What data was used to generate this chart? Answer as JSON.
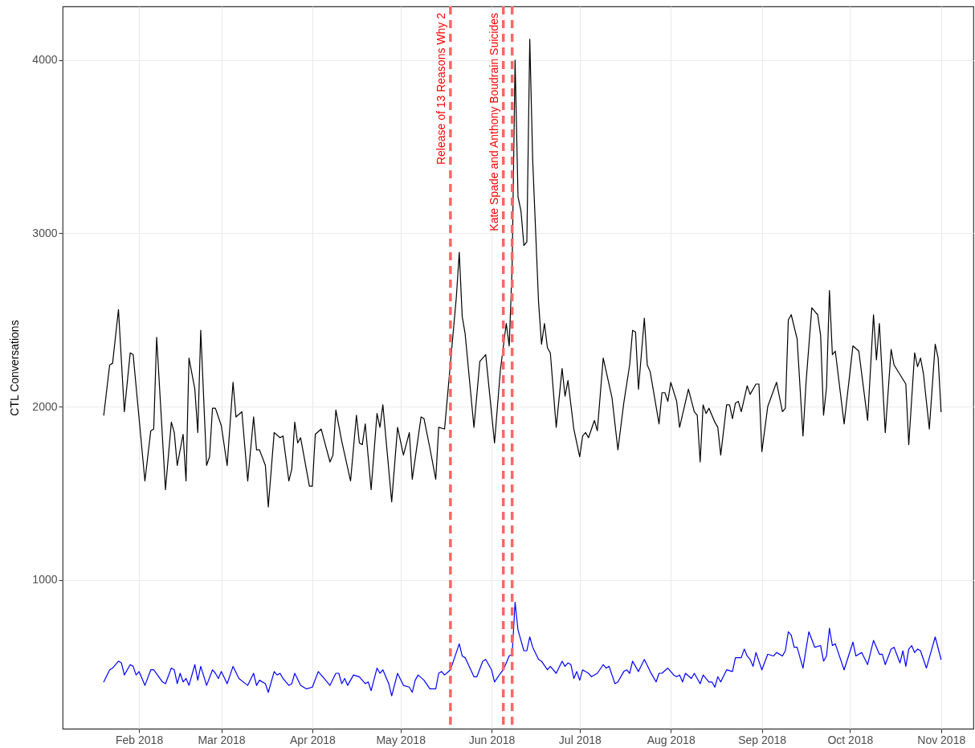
{
  "chart_data": {
    "type": "line",
    "ylabel": "CTL Conversations",
    "grid": true,
    "line_style": "solid",
    "xlim": [
      "2018-01-06",
      "2018-11-12"
    ],
    "ylim": [
      140,
      4310
    ],
    "xticks": [
      {
        "value": "2018-02-01",
        "label": "Feb 2018"
      },
      {
        "value": "2018-03-01",
        "label": "Mar 2018"
      },
      {
        "value": "2018-04-01",
        "label": "Apr 2018"
      },
      {
        "value": "2018-05-01",
        "label": "May 2018"
      },
      {
        "value": "2018-06-01",
        "label": "Jun 2018"
      },
      {
        "value": "2018-07-01",
        "label": "Jul 2018"
      },
      {
        "value": "2018-08-01",
        "label": "Aug 2018"
      },
      {
        "value": "2018-09-01",
        "label": "Sep 2018"
      },
      {
        "value": "2018-10-01",
        "label": "Oct 2018"
      },
      {
        "value": "2018-11-01",
        "label": "Nov 2018"
      }
    ],
    "yticks": [
      1000,
      2000,
      3000,
      4000
    ],
    "ref_lines": [
      {
        "axis": "x",
        "value": "2018-05-18",
        "label": "Release of 13 Reasons Why 2",
        "color": "#ff6666",
        "line_style": "dashed"
      },
      {
        "axis": "x",
        "value": "2018-06-05",
        "label": "Kate Spade and Anthony Boudrain Suicides",
        "color": "#ff6666",
        "line_style": "dashed"
      },
      {
        "axis": "x",
        "value": "2018-06-08",
        "color": "#ff6666",
        "line_style": "dashed"
      }
    ],
    "series": [
      {
        "color": "#000000",
        "x": [
          "2018-01-20",
          "2018-01-22",
          "2018-01-23",
          "2018-01-25",
          "2018-01-27",
          "2018-01-29",
          "2018-01-30",
          "2018-02-03",
          "2018-02-05",
          "2018-02-06",
          "2018-02-07",
          "2018-02-10",
          "2018-02-12",
          "2018-02-13",
          "2018-02-14",
          "2018-02-16",
          "2018-02-17",
          "2018-02-18",
          "2018-02-20",
          "2018-02-21",
          "2018-02-22",
          "2018-02-24",
          "2018-02-25",
          "2018-02-26",
          "2018-02-27",
          "2018-03-01",
          "2018-03-03",
          "2018-03-05",
          "2018-03-06",
          "2018-03-08",
          "2018-03-10",
          "2018-03-12",
          "2018-03-13",
          "2018-03-14",
          "2018-03-16",
          "2018-03-17",
          "2018-03-19",
          "2018-03-21",
          "2018-03-22",
          "2018-03-24",
          "2018-03-25",
          "2018-03-26",
          "2018-03-27",
          "2018-03-28",
          "2018-03-31",
          "2018-04-01",
          "2018-04-02",
          "2018-04-04",
          "2018-04-07",
          "2018-04-08",
          "2018-04-09",
          "2018-04-11",
          "2018-04-14",
          "2018-04-16",
          "2018-04-17",
          "2018-04-18",
          "2018-04-19",
          "2018-04-21",
          "2018-04-23",
          "2018-04-24",
          "2018-04-25",
          "2018-04-28",
          "2018-04-30",
          "2018-05-02",
          "2018-05-04",
          "2018-05-05",
          "2018-05-08",
          "2018-05-09",
          "2018-05-11",
          "2018-05-13",
          "2018-05-14",
          "2018-05-16",
          "2018-05-18",
          "2018-05-20",
          "2018-05-21",
          "2018-05-22",
          "2018-05-23",
          "2018-05-26",
          "2018-05-28",
          "2018-05-30",
          "2018-06-02",
          "2018-06-04",
          "2018-06-06",
          "2018-06-07",
          "2018-06-08",
          "2018-06-09",
          "2018-06-10",
          "2018-06-11",
          "2018-06-12",
          "2018-06-13",
          "2018-06-14",
          "2018-06-15",
          "2018-06-17",
          "2018-06-18",
          "2018-06-19",
          "2018-06-20",
          "2018-06-21",
          "2018-06-23",
          "2018-06-25",
          "2018-06-26",
          "2018-06-27",
          "2018-06-29",
          "2018-07-01",
          "2018-07-02",
          "2018-07-03",
          "2018-07-04",
          "2018-07-06",
          "2018-07-07",
          "2018-07-09",
          "2018-07-12",
          "2018-07-14",
          "2018-07-16",
          "2018-07-18",
          "2018-07-19",
          "2018-07-20",
          "2018-07-21",
          "2018-07-23",
          "2018-07-24",
          "2018-07-25",
          "2018-07-28",
          "2018-07-29",
          "2018-07-30",
          "2018-07-31",
          "2018-08-01",
          "2018-08-03",
          "2018-08-04",
          "2018-08-07",
          "2018-08-09",
          "2018-08-10",
          "2018-08-11",
          "2018-08-12",
          "2018-08-13",
          "2018-08-14",
          "2018-08-16",
          "2018-08-17",
          "2018-08-18",
          "2018-08-20",
          "2018-08-21",
          "2018-08-22",
          "2018-08-23",
          "2018-08-24",
          "2018-08-25",
          "2018-08-27",
          "2018-08-28",
          "2018-08-30",
          "2018-08-31",
          "2018-09-01",
          "2018-09-03",
          "2018-09-06",
          "2018-09-08",
          "2018-09-09",
          "2018-09-10",
          "2018-09-11",
          "2018-09-13",
          "2018-09-15",
          "2018-09-16",
          "2018-09-18",
          "2018-09-20",
          "2018-09-21",
          "2018-09-22",
          "2018-09-23",
          "2018-09-24",
          "2018-09-25",
          "2018-09-26",
          "2018-09-29",
          "2018-10-02",
          "2018-10-04",
          "2018-10-07",
          "2018-10-09",
          "2018-10-10",
          "2018-10-11",
          "2018-10-13",
          "2018-10-15",
          "2018-10-16",
          "2018-10-20",
          "2018-10-21",
          "2018-10-23",
          "2018-10-24",
          "2018-10-25",
          "2018-10-26",
          "2018-10-28",
          "2018-10-30",
          "2018-10-31",
          "2018-11-01"
        ],
        "values": [
          1950,
          2240,
          2250,
          2560,
          1970,
          2310,
          2300,
          1570,
          1860,
          1870,
          2400,
          1520,
          1910,
          1850,
          1660,
          1840,
          1570,
          2280,
          2100,
          1850,
          2440,
          1660,
          1710,
          1990,
          1990,
          1890,
          1660,
          2140,
          1940,
          1970,
          1570,
          1940,
          1750,
          1750,
          1660,
          1420,
          1850,
          1820,
          1830,
          1570,
          1640,
          1910,
          1790,
          1820,
          1540,
          1540,
          1840,
          1870,
          1680,
          1720,
          1980,
          1800,
          1570,
          1950,
          1790,
          1780,
          1900,
          1520,
          1960,
          1880,
          2010,
          1450,
          1880,
          1720,
          1850,
          1580,
          1940,
          1930,
          1760,
          1580,
          1880,
          1870,
          2250,
          2630,
          2890,
          2520,
          2420,
          1880,
          2260,
          2300,
          1790,
          2210,
          2480,
          2350,
          2810,
          4000,
          3210,
          3130,
          2930,
          2950,
          4120,
          3420,
          2600,
          2360,
          2480,
          2340,
          2310,
          1880,
          2220,
          2060,
          2150,
          1870,
          1710,
          1830,
          1850,
          1820,
          1920,
          1860,
          2280,
          2050,
          1750,
          2020,
          2240,
          2440,
          2430,
          2100,
          2510,
          2240,
          2200,
          1900,
          2080,
          2080,
          2030,
          2140,
          2030,
          1880,
          2100,
          1970,
          1950,
          1680,
          2010,
          1960,
          1990,
          1910,
          1880,
          1720,
          2010,
          2010,
          1930,
          2020,
          2030,
          1970,
          2120,
          2070,
          2130,
          2130,
          1740,
          2000,
          2140,
          1970,
          1990,
          2500,
          2530,
          2390,
          1830,
          2130,
          2570,
          2530,
          2410,
          1950,
          2110,
          2670,
          2300,
          2320,
          1900,
          2350,
          2320,
          1920,
          2530,
          2270,
          2480,
          1850,
          2330,
          2240,
          2130,
          1780,
          2310,
          2230,
          2280,
          2190,
          1870,
          2360,
          2280,
          1970
        ]
      },
      {
        "color": "#0000ff",
        "x": [
          "2018-01-20",
          "2018-01-22",
          "2018-01-23",
          "2018-01-25",
          "2018-01-26",
          "2018-01-27",
          "2018-01-29",
          "2018-01-30",
          "2018-01-31",
          "2018-02-01",
          "2018-02-03",
          "2018-02-05",
          "2018-02-06",
          "2018-02-09",
          "2018-02-10",
          "2018-02-12",
          "2018-02-13",
          "2018-02-14",
          "2018-02-15",
          "2018-02-16",
          "2018-02-17",
          "2018-02-18",
          "2018-02-20",
          "2018-02-21",
          "2018-02-22",
          "2018-02-24",
          "2018-02-26",
          "2018-02-27",
          "2018-02-28",
          "2018-03-01",
          "2018-03-03",
          "2018-03-05",
          "2018-03-07",
          "2018-03-10",
          "2018-03-12",
          "2018-03-13",
          "2018-03-14",
          "2018-03-16",
          "2018-03-17",
          "2018-03-19",
          "2018-03-20",
          "2018-03-21",
          "2018-03-22",
          "2018-03-24",
          "2018-03-25",
          "2018-03-26",
          "2018-03-28",
          "2018-03-30",
          "2018-04-01",
          "2018-04-03",
          "2018-04-05",
          "2018-04-07",
          "2018-04-09",
          "2018-04-10",
          "2018-04-11",
          "2018-04-12",
          "2018-04-13",
          "2018-04-15",
          "2018-04-17",
          "2018-04-19",
          "2018-04-20",
          "2018-04-21",
          "2018-04-23",
          "2018-04-24",
          "2018-04-25",
          "2018-04-27",
          "2018-04-28",
          "2018-04-30",
          "2018-05-02",
          "2018-05-04",
          "2018-05-05",
          "2018-05-06",
          "2018-05-07",
          "2018-05-09",
          "2018-05-11",
          "2018-05-13",
          "2018-05-14",
          "2018-05-15",
          "2018-05-16",
          "2018-05-18",
          "2018-05-19",
          "2018-05-21",
          "2018-05-22",
          "2018-05-23",
          "2018-05-26",
          "2018-05-27",
          "2018-05-29",
          "2018-05-30",
          "2018-06-01",
          "2018-06-02",
          "2018-06-04",
          "2018-06-05",
          "2018-06-07",
          "2018-06-08",
          "2018-06-09",
          "2018-06-10",
          "2018-06-12",
          "2018-06-13",
          "2018-06-14",
          "2018-06-15",
          "2018-06-17",
          "2018-06-18",
          "2018-06-20",
          "2018-06-21",
          "2018-06-23",
          "2018-06-25",
          "2018-06-26",
          "2018-06-27",
          "2018-06-28",
          "2018-06-29",
          "2018-06-30",
          "2018-07-01",
          "2018-07-02",
          "2018-07-04",
          "2018-07-05",
          "2018-07-07",
          "2018-07-09",
          "2018-07-10",
          "2018-07-11",
          "2018-07-13",
          "2018-07-14",
          "2018-07-16",
          "2018-07-17",
          "2018-07-18",
          "2018-07-19",
          "2018-07-21",
          "2018-07-23",
          "2018-07-25",
          "2018-07-27",
          "2018-07-28",
          "2018-07-29",
          "2018-07-31",
          "2018-08-02",
          "2018-08-03",
          "2018-08-04",
          "2018-08-05",
          "2018-08-06",
          "2018-08-08",
          "2018-08-09",
          "2018-08-11",
          "2018-08-12",
          "2018-08-14",
          "2018-08-15",
          "2018-08-16",
          "2018-08-17",
          "2018-08-18",
          "2018-08-20",
          "2018-08-22",
          "2018-08-23",
          "2018-08-25",
          "2018-08-26",
          "2018-08-27",
          "2018-08-28",
          "2018-08-29",
          "2018-08-30",
          "2018-09-01",
          "2018-09-03",
          "2018-09-05",
          "2018-09-06",
          "2018-09-08",
          "2018-09-09",
          "2018-09-10",
          "2018-09-11",
          "2018-09-12",
          "2018-09-13",
          "2018-09-15",
          "2018-09-17",
          "2018-09-19",
          "2018-09-21",
          "2018-09-22",
          "2018-09-23",
          "2018-09-24",
          "2018-09-25",
          "2018-09-26",
          "2018-09-29",
          "2018-10-02",
          "2018-10-03",
          "2018-10-05",
          "2018-10-07",
          "2018-10-09",
          "2018-10-11",
          "2018-10-12",
          "2018-10-13",
          "2018-10-15",
          "2018-10-16",
          "2018-10-18",
          "2018-10-19",
          "2018-10-20",
          "2018-10-21",
          "2018-10-22",
          "2018-10-23",
          "2018-10-24",
          "2018-10-25",
          "2018-10-27",
          "2018-10-30",
          "2018-11-01"
        ],
        "values": [
          410,
          480,
          490,
          530,
          520,
          450,
          510,
          500,
          450,
          470,
          390,
          480,
          480,
          410,
          400,
          490,
          480,
          400,
          460,
          410,
          430,
          390,
          510,
          420,
          500,
          390,
          480,
          460,
          430,
          470,
          400,
          500,
          430,
          390,
          460,
          390,
          420,
          400,
          350,
          470,
          450,
          460,
          430,
          390,
          400,
          460,
          390,
          370,
          380,
          470,
          430,
          390,
          460,
          460,
          400,
          430,
          390,
          450,
          440,
          400,
          410,
          360,
          490,
          460,
          480,
          400,
          330,
          460,
          390,
          380,
          350,
          420,
          450,
          420,
          370,
          370,
          460,
          470,
          450,
          480,
          530,
          630,
          560,
          550,
          440,
          440,
          530,
          540,
          480,
          410,
          460,
          480,
          560,
          570,
          870,
          710,
          590,
          590,
          670,
          610,
          540,
          530,
          480,
          500,
          460,
          530,
          500,
          520,
          510,
          430,
          470,
          420,
          480,
          460,
          440,
          460,
          510,
          490,
          500,
          400,
          410,
          470,
          480,
          460,
          530,
          470,
          540,
          470,
          410,
          460,
          460,
          490,
          450,
          440,
          450,
          410,
          460,
          430,
          460,
          400,
          450,
          410,
          410,
          380,
          440,
          410,
          480,
          470,
          550,
          550,
          600,
          560,
          540,
          500,
          580,
          480,
          570,
          560,
          580,
          560,
          590,
          700,
          680,
          610,
          610,
          490,
          700,
          610,
          620,
          530,
          560,
          720,
          620,
          630,
          480,
          640,
          560,
          580,
          510,
          650,
          570,
          570,
          510,
          600,
          610,
          520,
          590,
          500,
          600,
          620,
          580,
          600,
          590,
          490,
          670,
          540
        ]
      }
    ]
  }
}
